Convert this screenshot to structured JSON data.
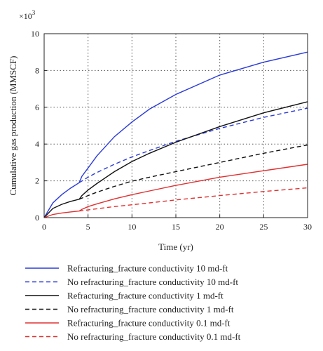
{
  "chart_data": {
    "type": "line",
    "xlabel": "Time (yr)",
    "ylabel": "Cumulative gas production (MMSCF)",
    "y_multiplier": "×10",
    "y_multiplier_exp": "3",
    "xlim": [
      0,
      30
    ],
    "ylim": [
      0,
      10
    ],
    "xticks": [
      "0",
      "5",
      "10",
      "15",
      "20",
      "25",
      "30"
    ],
    "yticks": [
      "0",
      "2",
      "4",
      "6",
      "8",
      "10"
    ],
    "grid": "dotted",
    "legend_position": "bottom",
    "series": [
      {
        "name": "Refracturing_fracture conductivity 10 md-ft",
        "color": "#2b3bd6",
        "style": "solid",
        "x": [
          0,
          1,
          2,
          3,
          4,
          4.3,
          5,
          6,
          8,
          10,
          12,
          15,
          20,
          25,
          30
        ],
        "y": [
          0,
          0.8,
          1.25,
          1.6,
          1.9,
          2.25,
          2.7,
          3.35,
          4.4,
          5.2,
          5.9,
          6.7,
          7.75,
          8.45,
          9.0
        ]
      },
      {
        "name": "No refracturing_fracture conductivity 10 md-ft",
        "color": "#2b3bd6",
        "style": "dashed",
        "x": [
          4,
          5,
          6,
          8,
          10,
          12,
          15,
          20,
          25,
          30
        ],
        "y": [
          1.9,
          2.2,
          2.45,
          2.9,
          3.3,
          3.65,
          4.15,
          4.85,
          5.45,
          5.95
        ]
      },
      {
        "name": "Refracturing_fracture conductivity 1 md-ft",
        "color": "#111111",
        "style": "solid",
        "x": [
          0,
          1,
          2,
          3,
          4,
          4.3,
          5,
          6,
          8,
          10,
          12,
          15,
          20,
          25,
          30
        ],
        "y": [
          0,
          0.5,
          0.72,
          0.88,
          1.0,
          1.2,
          1.5,
          1.85,
          2.5,
          3.05,
          3.5,
          4.1,
          4.95,
          5.7,
          6.3
        ]
      },
      {
        "name": "No refracturing_fracture conductivity 1 md-ft",
        "color": "#111111",
        "style": "dashed",
        "x": [
          4,
          5,
          6,
          8,
          10,
          12,
          15,
          20,
          25,
          30
        ],
        "y": [
          1.0,
          1.2,
          1.38,
          1.7,
          1.98,
          2.2,
          2.5,
          3.0,
          3.5,
          3.95
        ]
      },
      {
        "name": "Refracturing_fracture conductivity 0.1 md-ft",
        "color": "#e03030",
        "style": "solid",
        "x": [
          0,
          1,
          2,
          3,
          4,
          4.3,
          5,
          6,
          8,
          10,
          12,
          15,
          20,
          25,
          30
        ],
        "y": [
          0,
          0.17,
          0.25,
          0.31,
          0.36,
          0.45,
          0.6,
          0.75,
          1.02,
          1.25,
          1.45,
          1.75,
          2.2,
          2.55,
          2.9
        ]
      },
      {
        "name": "No refracturing_fracture conductivity 0.1 md-ft",
        "color": "#e03030",
        "style": "dashed",
        "x": [
          4,
          5,
          6,
          8,
          10,
          12,
          15,
          20,
          25,
          30
        ],
        "y": [
          0.36,
          0.42,
          0.48,
          0.6,
          0.7,
          0.8,
          0.96,
          1.2,
          1.42,
          1.62
        ]
      }
    ]
  }
}
